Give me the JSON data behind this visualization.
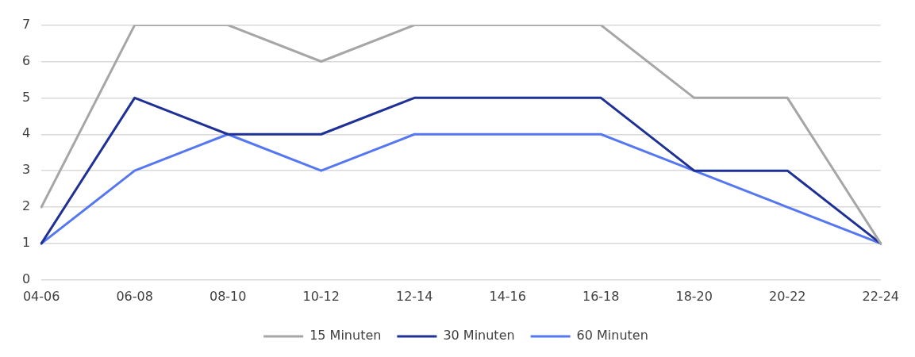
{
  "chart_data": {
    "type": "line",
    "categories": [
      "04-06",
      "06-08",
      "08-10",
      "10-12",
      "12-14",
      "14-16",
      "16-18",
      "18-20",
      "20-22",
      "22-24"
    ],
    "series": [
      {
        "name": "15 Minuten",
        "color": "#a6a6a6",
        "values": [
          2,
          7,
          7,
          6,
          7,
          7,
          7,
          5,
          5,
          1
        ]
      },
      {
        "name": "30 Minuten",
        "color": "#1f3194",
        "values": [
          1,
          5,
          4,
          4,
          5,
          5,
          5,
          3,
          3,
          1
        ]
      },
      {
        "name": "60 Minuten",
        "color": "#5577f2",
        "values": [
          1,
          3,
          4,
          3,
          4,
          4,
          4,
          3,
          2,
          1
        ]
      }
    ],
    "ylim": [
      0,
      7
    ],
    "yticks": [
      0,
      1,
      2,
      3,
      4,
      5,
      6,
      7
    ],
    "grid": "y",
    "legend": "bottom",
    "marker": "none",
    "line_style": "solid"
  }
}
